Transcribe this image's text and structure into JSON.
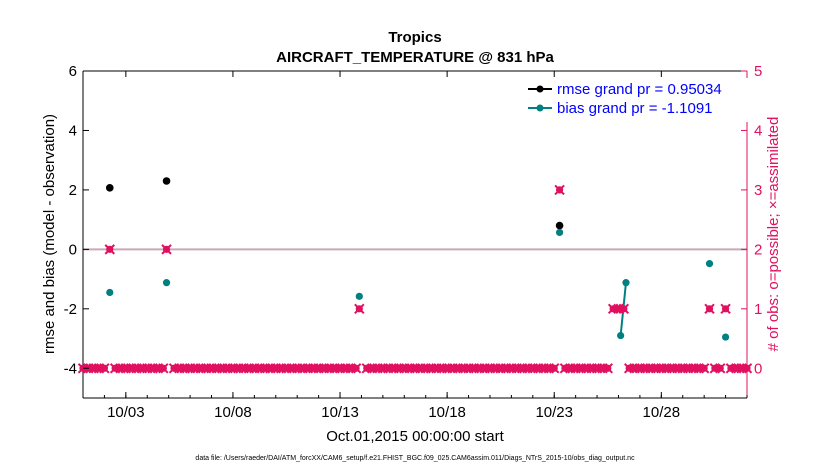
{
  "chart_data": {
    "type": "scatter",
    "title": "Tropics",
    "subtitle": "AIRCRAFT_TEMPERATURE @ 831 hPa",
    "xlabel": "Oct.01,2015 00:00:00 start",
    "ylabel": "rmse and bias (model - observation)",
    "ylabel_right": "# of obs: o=possible; ×=assimilated",
    "xlim": [
      1.0,
      32.0
    ],
    "ylim": [
      -5,
      6
    ],
    "ylim_right": [
      -0.5,
      5
    ],
    "x_ticks": [
      3,
      8,
      13,
      18,
      23,
      28
    ],
    "x_tick_labels": [
      "10/03",
      "10/08",
      "10/13",
      "10/18",
      "10/23",
      "10/28"
    ],
    "y_ticks": [
      -4,
      -2,
      0,
      2,
      4,
      6
    ],
    "y_tick_labels": [
      "-4",
      "-2",
      "0",
      "2",
      "4",
      "6"
    ],
    "y_right_ticks": [
      0,
      1,
      2,
      3,
      4,
      5
    ],
    "y_right_tick_labels": [
      "0",
      "1",
      "2",
      "3",
      "4",
      "5"
    ],
    "footnote": "data file: /Users/raeder/DAI/ATM_forcXX/CAM6_setup/f.e21.FHIST_BGC.f09_025.CAM6assim.011/Diags_NTrS_2015-10/obs_diag_output.nc",
    "legend_position": "top-right",
    "series": [
      {
        "name": "rmse grand pr = 0.95034",
        "axis": "left",
        "color": "#000000",
        "points": [
          [
            2.25,
            2.07
          ],
          [
            4.9,
            2.3
          ],
          [
            23.25,
            0.8
          ]
        ]
      },
      {
        "name": "bias grand pr = -1.1091",
        "axis": "left",
        "color": "#008080",
        "points": [
          [
            2.25,
            -1.45
          ],
          [
            4.9,
            -1.12
          ],
          [
            13.9,
            -1.58
          ],
          [
            23.25,
            0.57
          ],
          [
            26.1,
            -2.9
          ],
          [
            26.35,
            -1.12
          ],
          [
            30.25,
            -0.48
          ],
          [
            31.0,
            -2.95
          ]
        ]
      },
      {
        "name": "obs possible",
        "axis": "right",
        "color": "#e0115f",
        "points": [
          [
            2.25,
            2
          ],
          [
            4.9,
            2
          ],
          [
            13.9,
            1
          ],
          [
            23.25,
            3
          ],
          [
            25.75,
            1
          ],
          [
            26.0,
            1
          ],
          [
            26.25,
            1
          ],
          [
            30.25,
            1
          ],
          [
            31.0,
            1
          ]
        ]
      }
    ],
    "connected_segments": [
      {
        "series": 1,
        "x": [
          26.1,
          26.35
        ],
        "y": [
          -2.9,
          -1.12
        ]
      }
    ],
    "zero_obs_markers": {
      "axis": "right",
      "color": "#e0115f",
      "value": 0,
      "x_start": 1.0,
      "x_end": 32.0,
      "step": 0.25,
      "gaps": [
        [
          2.1,
          2.4
        ],
        [
          4.75,
          5.05
        ],
        [
          13.75,
          14.05
        ],
        [
          23.1,
          23.4
        ],
        [
          25.6,
          26.4
        ],
        [
          30.1,
          30.4
        ],
        [
          30.85,
          31.15
        ]
      ]
    },
    "colors": {
      "rmse": "#000000",
      "bias": "#008080",
      "obs": "#e0115f",
      "zero_line": "#c9a9b8",
      "legend_text": "#0000ff",
      "right_axis": "#e0115f"
    }
  }
}
